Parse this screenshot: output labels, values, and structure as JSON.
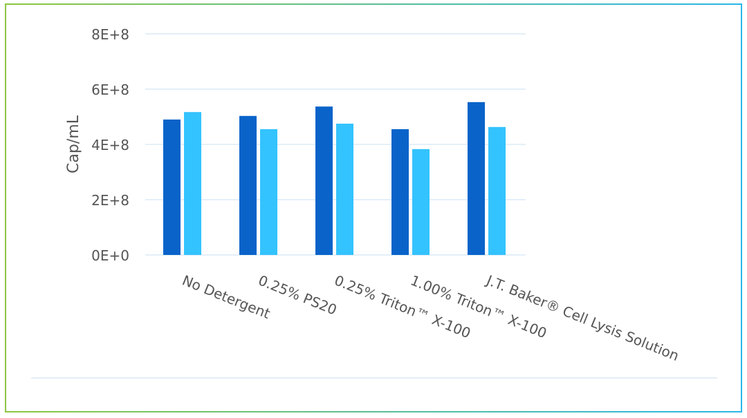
{
  "colors": {
    "frame_left": "#8cc63f",
    "frame_right": "#29b6e8",
    "grid": "#dceaf7",
    "axis_text": "#555555",
    "bottom_rule": "#e3eef8"
  },
  "chart_data": {
    "type": "bar",
    "title": "",
    "xlabel": "",
    "ylabel": "Cap/mL",
    "categories": [
      "No Detergent",
      "0.25% PS20",
      "0.25% Triton™ X-100",
      "1.00% Triton™ X-100",
      "J.T. Baker® Cell Lysis Solution"
    ],
    "series": [
      {
        "color": "#0a63c9",
        "values": [
          490000000.0,
          503000000.0,
          537000000.0,
          455000000.0,
          553000000.0
        ]
      },
      {
        "color": "#33c3ff",
        "values": [
          517000000.0,
          455000000.0,
          475000000.0,
          383000000.0,
          463000000.0
        ]
      }
    ],
    "ylim": [
      0,
      800000000.0
    ],
    "yticks": [
      {
        "value": 0,
        "label": "0E+0"
      },
      {
        "value": 200000000.0,
        "label": "2E+8"
      },
      {
        "value": 400000000.0,
        "label": "4E+8"
      },
      {
        "value": 600000000.0,
        "label": "6E+8"
      },
      {
        "value": 800000000.0,
        "label": "8E+8"
      }
    ],
    "grid": true,
    "legend": "none"
  }
}
